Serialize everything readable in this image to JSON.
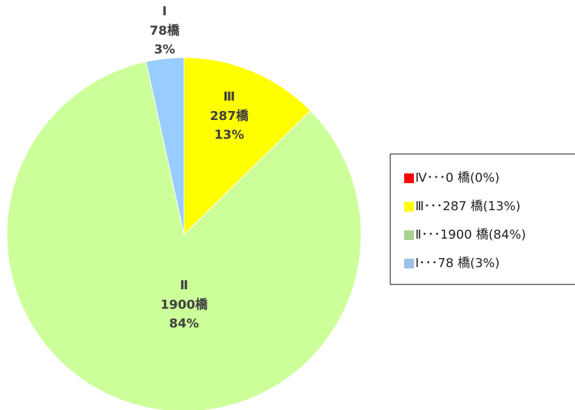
{
  "chart_data": {
    "type": "pie",
    "categories": [
      "Ⅳ",
      "Ⅲ",
      "Ⅱ",
      "Ⅰ"
    ],
    "values": [
      0,
      287,
      1900,
      78
    ],
    "value_labels": [
      null,
      "287橋",
      "1900橋",
      "78橋"
    ],
    "percent_labels": [
      null,
      "13%",
      "84%",
      "3%"
    ],
    "colors": [
      "#ff0000",
      "#ffff00",
      "#ccff99",
      "#99ccff"
    ],
    "legend_labels": [
      "Ⅳ･･･0 橋(0%)",
      "Ⅲ･･･287 橋(13%)",
      "Ⅱ･･･1900 橋(84%)",
      "Ⅰ･･･78 橋(3%)"
    ],
    "legend_colors": [
      "#ff0000",
      "#ffff00",
      "#a9d08e",
      "#9bc2e6"
    ]
  }
}
